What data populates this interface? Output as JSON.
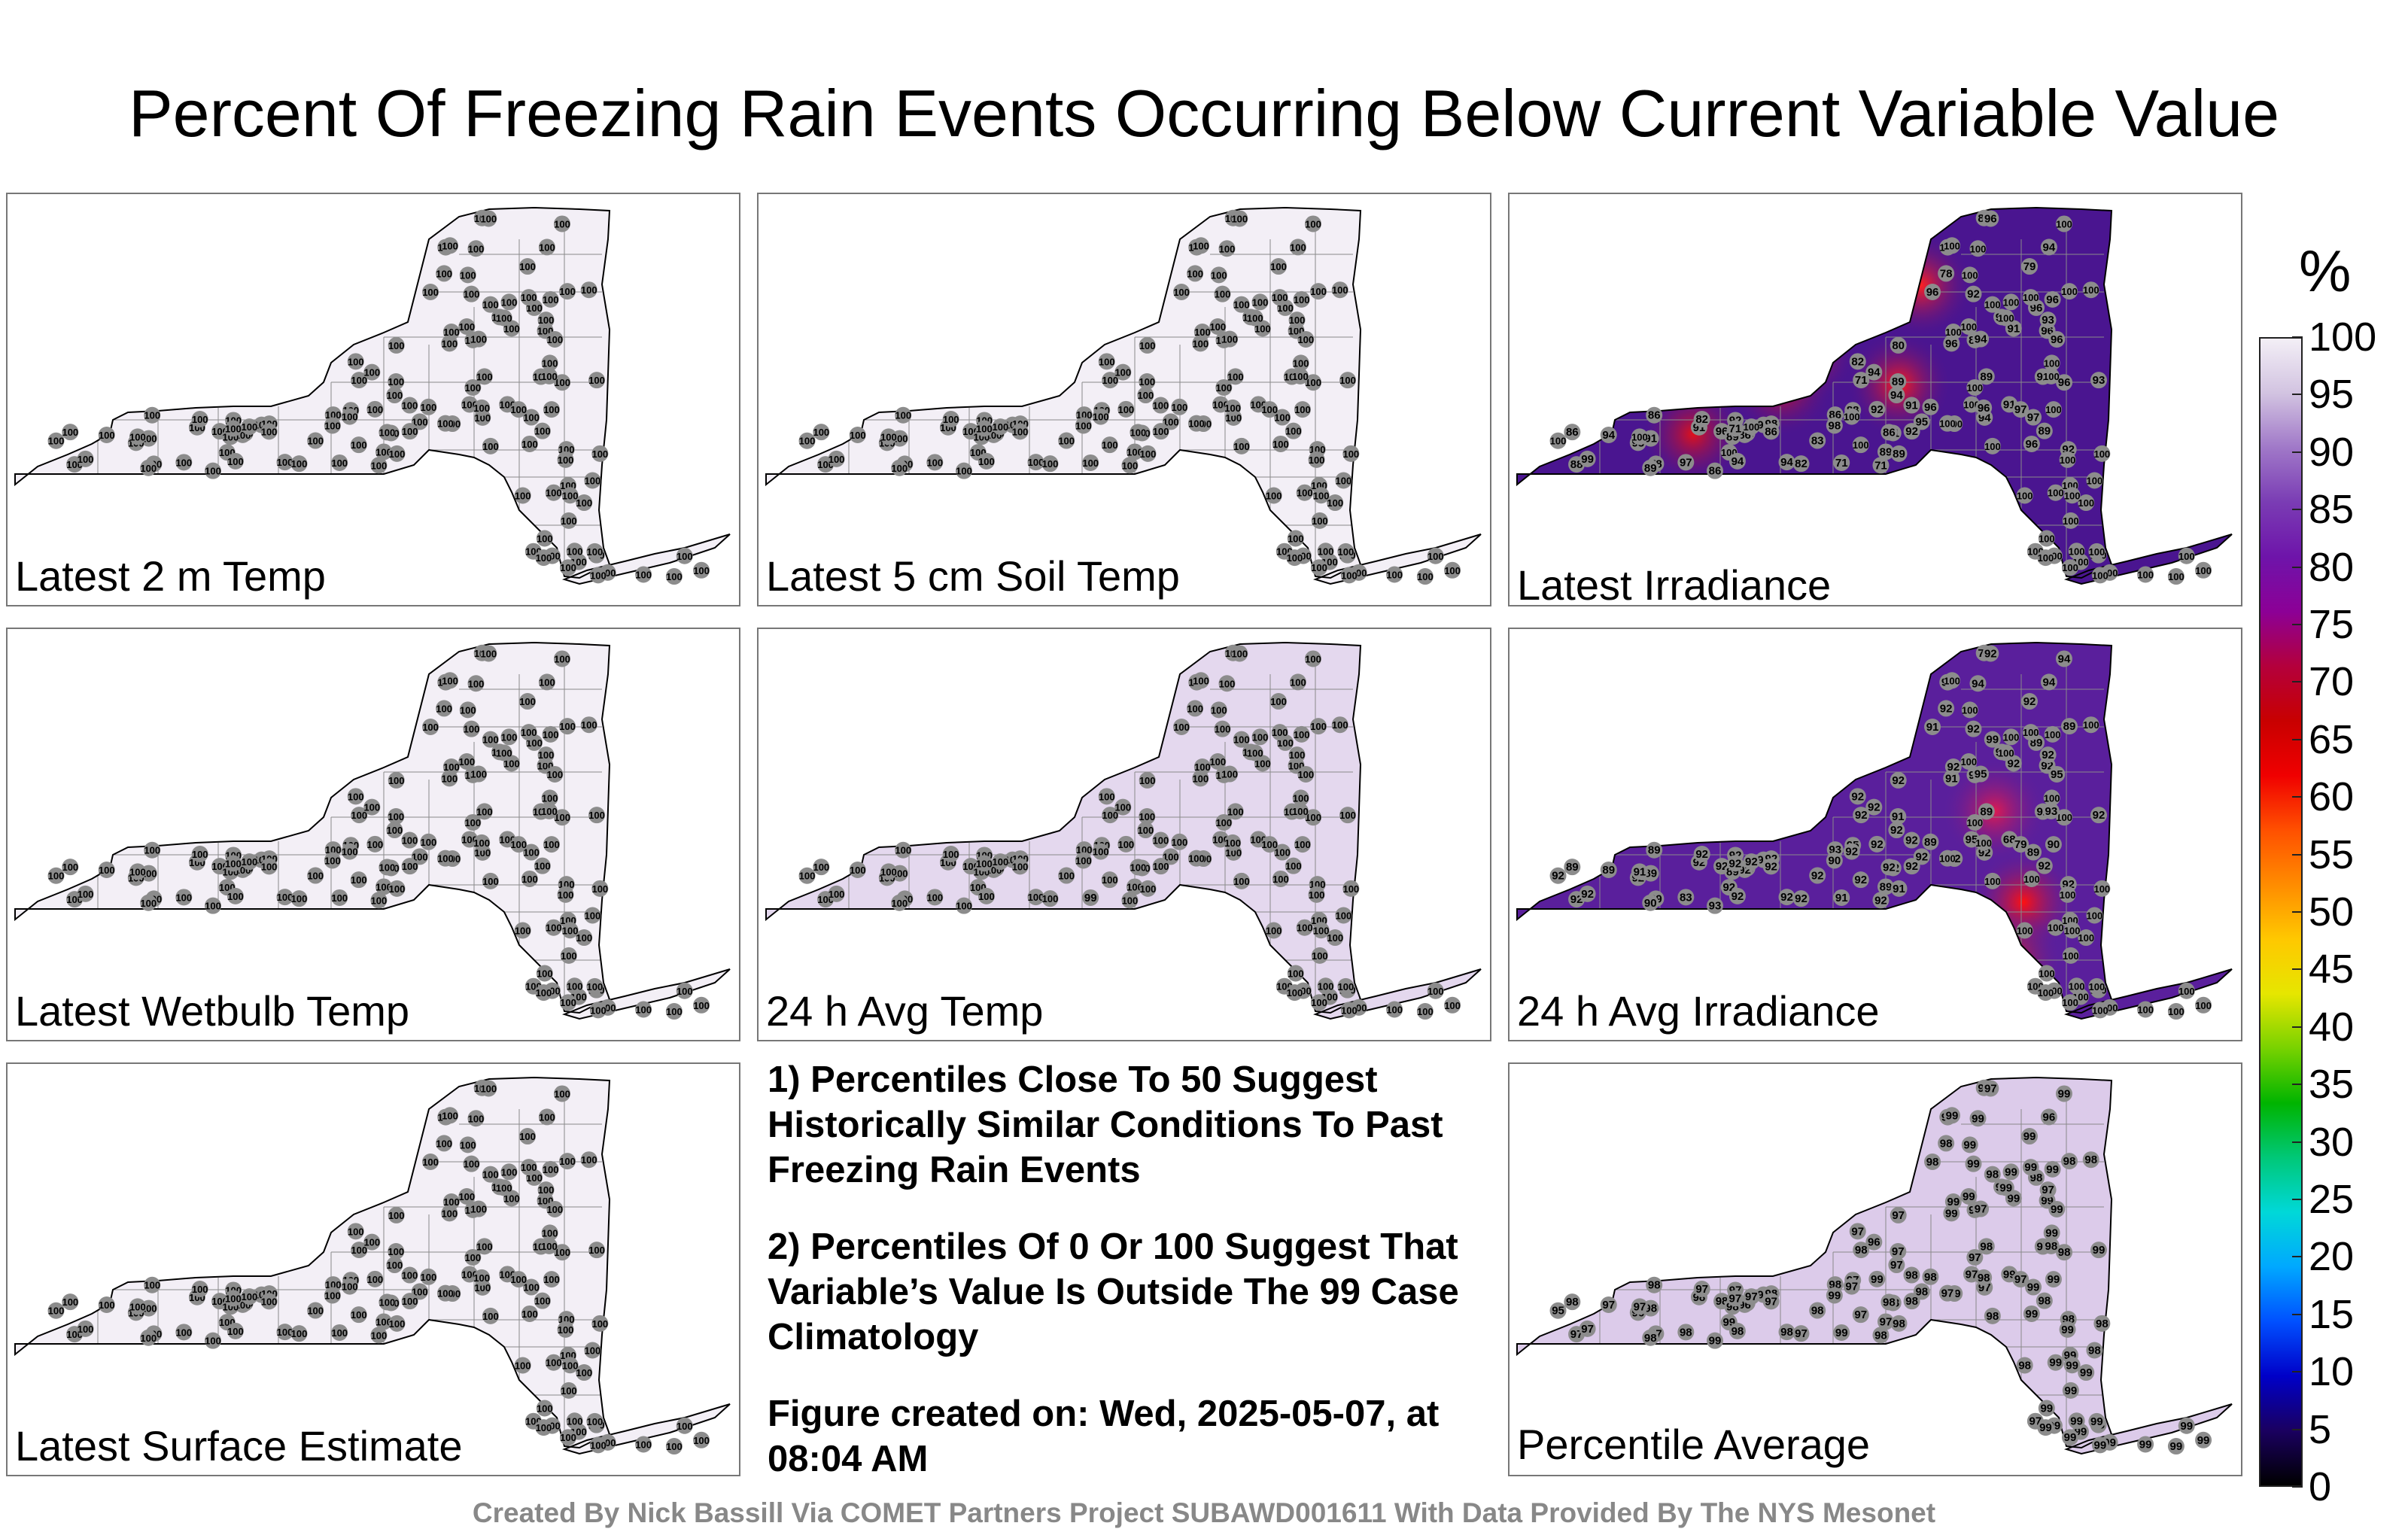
{
  "title": "Percent Of Freezing Rain Events Occurring Below Current Variable Value",
  "panels": [
    {
      "label": "Latest 2 m Temp",
      "fill": "#f3eff6",
      "hotspots": [],
      "stations": [
        "100",
        "100",
        "100",
        "100",
        "100",
        "100",
        "100",
        "100",
        "100",
        "100",
        "100",
        "100",
        "100",
        "100",
        "100",
        "100",
        "100",
        "100",
        "100",
        "100",
        "100",
        "100",
        "100",
        "100",
        "100",
        "100",
        "100",
        "100",
        "100",
        "100",
        "100",
        "100",
        "100",
        "100",
        "100",
        "100",
        "100",
        "100",
        "100",
        "100",
        "100",
        "100",
        "100",
        "100",
        "100",
        "100",
        "100",
        "100",
        "100",
        "100",
        "100",
        "100",
        "100",
        "100",
        "100",
        "100",
        "100",
        "100",
        "100",
        "100",
        "100",
        "100",
        "100",
        "100",
        "100",
        "100",
        "100",
        "100",
        "100",
        "100",
        "100",
        "100",
        "100",
        "100",
        "100",
        "100",
        "100",
        "100",
        "100",
        "100",
        "100",
        "100",
        "100",
        "100",
        "100",
        "100",
        "100",
        "100",
        "100",
        "100",
        "100",
        "100",
        "100",
        "100",
        "100",
        "100",
        "100",
        "100",
        "100",
        "100",
        "100",
        "100",
        "100",
        "100",
        "100",
        "100",
        "100",
        "100",
        "100",
        "100",
        "100",
        "100",
        "100",
        "100",
        "100",
        "100",
        "100",
        "100",
        "100",
        "100",
        "100",
        "100",
        "100",
        "100",
        "100",
        "100"
      ]
    },
    {
      "label": "Latest 5 cm Soil Temp",
      "fill": "#f3eff6",
      "hotspots": [],
      "stations": [
        "100",
        "100",
        "100",
        "100",
        "100",
        "100",
        "100",
        "100",
        "100",
        "100",
        "100",
        "100",
        "100",
        "100",
        "100",
        "100",
        "100",
        "100",
        "100",
        "100",
        "100",
        "100",
        "100",
        "100",
        "100",
        "100",
        "100",
        "100",
        "100",
        "100",
        "100",
        "100",
        "100",
        "100",
        "100",
        "100",
        "100",
        "100",
        "100",
        "100",
        "100",
        "100",
        "100",
        "100",
        "100",
        "100",
        "100",
        "100",
        "100",
        "100",
        "100",
        "100",
        "100",
        "100",
        "100",
        "100",
        "100",
        "100",
        "100",
        "100",
        "100",
        "100",
        "100",
        "100",
        "100",
        "100",
        "100",
        "100",
        "100",
        "100",
        "100",
        "100",
        "100",
        "100",
        "100",
        "100",
        "100",
        "100",
        "100",
        "100",
        "100",
        "100",
        "100",
        "100",
        "100",
        "100",
        "100",
        "100",
        "100",
        "100",
        "100",
        "100",
        "100",
        "100",
        "100",
        "100",
        "100",
        "100",
        "100",
        "100",
        "100",
        "100",
        "100",
        "100",
        "100",
        "100",
        "100",
        "100",
        "100",
        "100",
        "100",
        "100",
        "100",
        "100",
        "100",
        "100",
        "100",
        "100",
        "100",
        "100",
        "100",
        "100",
        "100",
        "100",
        "100",
        "100"
      ]
    },
    {
      "label": "Latest Irradiance",
      "fill": "#4a1590",
      "hotspots": [
        [
          0.4,
          0.38,
          "#ff1a1a"
        ],
        [
          0.37,
          0.46,
          "#e0101a"
        ],
        [
          0.56,
          0.22,
          "#ff2020"
        ],
        [
          0.53,
          0.46,
          "#ff1a1a"
        ],
        [
          0.25,
          0.58,
          "#e0101a"
        ]
      ],
      "stations": [
        "96",
        "86",
        "100",
        "88",
        "94",
        "71",
        "92",
        "91",
        "99",
        "94",
        "100",
        "86",
        "94",
        "82",
        "91",
        "98",
        "86",
        "93",
        "83",
        "100",
        "78",
        "86",
        "97",
        "92",
        "82",
        "89",
        "71",
        "100",
        "89",
        "86",
        "82",
        "80",
        "71",
        "94",
        "91",
        "89",
        "71",
        "86",
        "92",
        "89",
        "71",
        "88",
        "95",
        "98",
        "94",
        "92",
        "100",
        "96",
        "100",
        "89",
        "86",
        "71",
        "78",
        "91",
        "94",
        "100",
        "92",
        "96",
        "100",
        "92",
        "97",
        "84",
        "86",
        "92",
        "96",
        "89",
        "94",
        "79",
        "93",
        "89",
        "100",
        "92",
        "96",
        "93",
        "97",
        "100",
        "91",
        "100",
        "96",
        "96",
        "100",
        "100",
        "96",
        "96",
        "100",
        "100",
        "100",
        "100",
        "100",
        "96",
        "100",
        "96",
        "94",
        "96",
        "100",
        "100",
        "100",
        "100",
        "100",
        "100",
        "100",
        "100",
        "100",
        "100",
        "100",
        "100",
        "100",
        "100",
        "100",
        "100",
        "100",
        "100",
        "100",
        "100",
        "100",
        "100",
        "100",
        "100",
        "100",
        "100",
        "100",
        "100",
        "100",
        "100",
        "100",
        "100"
      ]
    },
    {
      "label": "Latest Wetbulb Temp",
      "fill": "#f3eff6",
      "hotspots": [],
      "stations": [
        "100",
        "100",
        "100",
        "100",
        "100",
        "100",
        "100",
        "100",
        "100",
        "100",
        "100",
        "100",
        "100",
        "100",
        "100",
        "100",
        "100",
        "100",
        "100",
        "100",
        "100",
        "100",
        "100",
        "100",
        "100",
        "100",
        "100",
        "100",
        "100",
        "100",
        "100",
        "100",
        "100",
        "100",
        "100",
        "100",
        "100",
        "100",
        "100",
        "100",
        "100",
        "100",
        "100",
        "100",
        "100",
        "100",
        "100",
        "100",
        "100",
        "100",
        "100",
        "100",
        "100",
        "100",
        "100",
        "100",
        "100",
        "100",
        "100",
        "100",
        "100",
        "100",
        "100",
        "100",
        "100",
        "100",
        "100",
        "100",
        "100",
        "100",
        "100",
        "100",
        "100",
        "100",
        "100",
        "100",
        "100",
        "100",
        "100",
        "100",
        "100",
        "100",
        "100",
        "100",
        "100",
        "100",
        "100",
        "100",
        "100",
        "100",
        "100",
        "100",
        "100",
        "100",
        "100",
        "100",
        "100",
        "100",
        "100",
        "100",
        "100",
        "100",
        "100",
        "100",
        "100",
        "100",
        "100",
        "100",
        "100",
        "100",
        "100",
        "100",
        "100",
        "100",
        "100",
        "100",
        "100",
        "100",
        "100",
        "100",
        "100",
        "100",
        "100",
        "100",
        "100",
        "100"
      ]
    },
    {
      "label": "24 h Avg Temp",
      "fill": "#e4d8ee",
      "hotspots": [],
      "stations": [
        "100",
        "100",
        "100",
        "100",
        "100",
        "100",
        "100",
        "100",
        "100",
        "100",
        "100",
        "100",
        "100",
        "100",
        "100",
        "100",
        "100",
        "100",
        "100",
        "100",
        "100",
        "100",
        "100",
        "100",
        "100",
        "100",
        "100",
        "100",
        "100",
        "100",
        "100",
        "100",
        "100",
        "100",
        "100",
        "100",
        "100",
        "100",
        "100",
        "100",
        "100",
        "100",
        "100",
        "100",
        "100",
        "100",
        "100",
        "100",
        "100",
        "100",
        "100",
        "99",
        "100",
        "100",
        "100",
        "100",
        "100",
        "100",
        "100",
        "100",
        "100",
        "100",
        "100",
        "100",
        "100",
        "100",
        "100",
        "100",
        "100",
        "100",
        "100",
        "100",
        "100",
        "100",
        "100",
        "100",
        "100",
        "100",
        "100",
        "100",
        "100",
        "100",
        "100",
        "100",
        "100",
        "100",
        "100",
        "100",
        "100",
        "100",
        "100",
        "100",
        "100",
        "100",
        "100",
        "100",
        "100",
        "100",
        "100",
        "100",
        "100",
        "100",
        "100",
        "100",
        "100",
        "100",
        "100",
        "100",
        "100",
        "100",
        "100",
        "100",
        "100",
        "100",
        "100",
        "100",
        "100",
        "100",
        "100",
        "100",
        "100",
        "100",
        "100",
        "100",
        "100",
        "100"
      ]
    },
    {
      "label": "24 h Avg Irradiance",
      "fill": "#5a1f9c",
      "hotspots": [
        [
          0.7,
          0.66,
          "#ff1010"
        ],
        [
          0.68,
          0.8,
          "#e02020"
        ],
        [
          0.66,
          0.44,
          "#e01a50"
        ]
      ],
      "stations": [
        "92",
        "93",
        "92",
        "92",
        "92",
        "92",
        "92",
        "92",
        "92",
        "92",
        "92",
        "92",
        "89",
        "92",
        "89",
        "92",
        "89",
        "92",
        "92",
        "92",
        "89",
        "92",
        "83",
        "92",
        "92",
        "89",
        "92",
        "91",
        "90",
        "89",
        "92",
        "92",
        "92",
        "92",
        "92",
        "89",
        "92",
        "93",
        "92",
        "91",
        "92",
        "95",
        "92",
        "90",
        "92",
        "92",
        "92",
        "89",
        "92",
        "91",
        "92",
        "91",
        "92",
        "68",
        "92",
        "95",
        "92",
        "91",
        "90",
        "92",
        "89",
        "73",
        "92",
        "92",
        "92",
        "92",
        "94",
        "92",
        "92",
        "89",
        "99",
        "92",
        "91",
        "92",
        "79",
        "89",
        "92",
        "92",
        "92",
        "89",
        "92",
        "100",
        "100",
        "100",
        "100",
        "100",
        "100",
        "100",
        "100",
        "100",
        "100",
        "100",
        "95",
        "95",
        "93",
        "94",
        "94",
        "92",
        "100",
        "100",
        "100",
        "100",
        "100",
        "100",
        "100",
        "100",
        "100",
        "100",
        "100",
        "100",
        "100",
        "100",
        "100",
        "100",
        "100",
        "100",
        "100",
        "100",
        "100",
        "100",
        "100",
        "100",
        "100",
        "100",
        "100",
        "100"
      ]
    },
    {
      "label": "Latest Surface Estimate",
      "fill": "#f3eff6",
      "hotspots": [],
      "stations": [
        "100",
        "100",
        "100",
        "100",
        "100",
        "100",
        "100",
        "100",
        "100",
        "100",
        "100",
        "100",
        "100",
        "100",
        "100",
        "100",
        "100",
        "100",
        "100",
        "100",
        "100",
        "100",
        "100",
        "100",
        "100",
        "100",
        "100",
        "100",
        "100",
        "100",
        "100",
        "100",
        "100",
        "100",
        "100",
        "100",
        "100",
        "100",
        "100",
        "100",
        "100",
        "100",
        "100",
        "100",
        "100",
        "100",
        "100",
        "100",
        "100",
        "100",
        "100",
        "100",
        "100",
        "100",
        "100",
        "100",
        "100",
        "100",
        "100",
        "100",
        "100",
        "100",
        "100",
        "100",
        "100",
        "100",
        "100",
        "100",
        "100",
        "100",
        "100",
        "100",
        "100",
        "100",
        "100",
        "100",
        "100",
        "100",
        "100",
        "100",
        "100",
        "100",
        "100",
        "100",
        "100",
        "100",
        "100",
        "100",
        "100",
        "100",
        "100",
        "100",
        "100",
        "100",
        "100",
        "100",
        "100",
        "100",
        "100",
        "100",
        "100",
        "100",
        "100",
        "100",
        "100",
        "100",
        "100",
        "100",
        "100",
        "100",
        "100",
        "100",
        "100",
        "100",
        "100",
        "100",
        "100",
        "100",
        "100",
        "100",
        "100",
        "100",
        "100",
        "100",
        "100",
        "100"
      ]
    },
    {
      "label": "Percentile Average",
      "fill": "#dccbea",
      "hotspots": [],
      "stations": [
        "98",
        "99",
        "99",
        "97",
        "98",
        "97",
        "98",
        "98",
        "97",
        "98",
        "95",
        "96",
        "97",
        "97",
        "98",
        "98",
        "98",
        "96",
        "98",
        "97",
        "97",
        "97",
        "98",
        "97",
        "97",
        "98",
        "97",
        "97",
        "98",
        "98",
        "97",
        "97",
        "98",
        "96",
        "98",
        "97",
        "98",
        "98",
        "99",
        "97",
        "98",
        "97",
        "98",
        "99",
        "97",
        "98",
        "97",
        "98",
        "97",
        "98",
        "98",
        "99",
        "98",
        "99",
        "97",
        "97",
        "98",
        "98",
        "99",
        "98",
        "99",
        "97",
        "98",
        "97",
        "99",
        "98",
        "96",
        "99",
        "97",
        "98",
        "98",
        "99",
        "99",
        "99",
        "97",
        "98",
        "99",
        "99",
        "97",
        "98",
        "97",
        "99",
        "98",
        "99",
        "99",
        "98",
        "97",
        "98",
        "99",
        "99",
        "97",
        "98",
        "97",
        "99",
        "98",
        "99",
        "99",
        "99",
        "99",
        "99",
        "99",
        "99",
        "99",
        "98",
        "99",
        "98",
        "98",
        "99",
        "98",
        "99",
        "97",
        "99",
        "99",
        "99",
        "99",
        "99",
        "99",
        "99",
        "99",
        "99",
        "99",
        "99",
        "99",
        "99",
        "99",
        "99"
      ]
    }
  ],
  "notes": [
    "1) Percentiles Close To 50 Suggest Historically Similar Conditions To Past Freezing Rain Events",
    "2) Percentiles Of 0 Or 100 Suggest That Variable’s Value Is Outside The 99 Case Climatology",
    "Figure created on: Wed, 2025-05-07, at 08:04 AM"
  ],
  "footer": "Created By Nick Bassill Via COMET Partners Project SUBAWD001611 With Data Provided By The NYS Mesonet",
  "colorbar": {
    "title": "%",
    "ticks": [
      "100",
      "95",
      "90",
      "85",
      "80",
      "75",
      "70",
      "65",
      "60",
      "55",
      "50",
      "45",
      "40",
      "35",
      "30",
      "25",
      "20",
      "15",
      "10",
      "5",
      "0"
    ],
    "colors": [
      "#000000",
      "#1a0060",
      "#0000c8",
      "#0050ff",
      "#00a8ff",
      "#00d8d8",
      "#00c878",
      "#00b400",
      "#78d200",
      "#e6e600",
      "#ffc800",
      "#ff8c00",
      "#ff5000",
      "#f00000",
      "#c80000",
      "#b4003c",
      "#8c0096",
      "#6e14aa",
      "#7a3cb4",
      "#a078c8",
      "#d2c3e1",
      "#f3eff6"
    ]
  }
}
